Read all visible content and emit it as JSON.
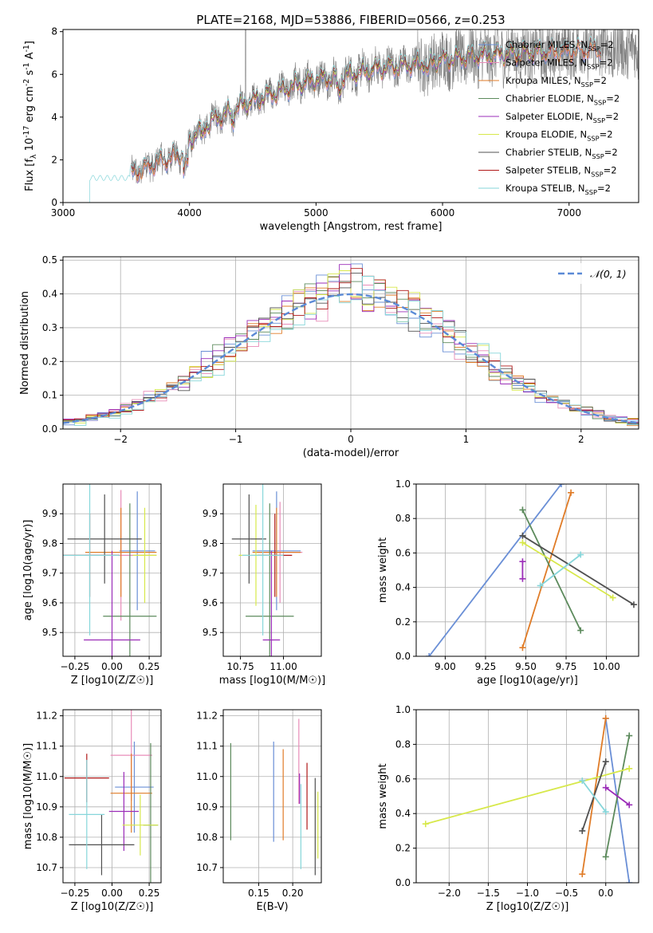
{
  "figure": {
    "title": "PLATE=2168, MJD=53886, FIBERID=0566, z=0.253"
  },
  "colors": {
    "Chabrier MILES": "#6a8fd6",
    "Salpeter MILES": "#e88cb8",
    "Kroupa MILES": "#e07c28",
    "Chabrier ELODIE": "#5c8a5c",
    "Salpeter ELODIE": "#9b2db8",
    "Kroupa ELODIE": "#d7e84a",
    "Chabrier STELIB": "#505050",
    "Salpeter STELIB": "#b01818",
    "Kroupa STELIB": "#86d6da",
    "gaussian": "#5b8ad6",
    "data": "#808080",
    "grid": "#b0b0b0"
  },
  "chart_data": [
    {
      "id": "spectrum",
      "type": "line",
      "title": "PLATE=2168, MJD=53886, FIBERID=0566, z=0.253",
      "xlabel": "wavelength [Angstrom, rest frame]",
      "ylabel": "Flux [f_λ 10^-17 erg cm^-2 s^-1 A^-1]",
      "xlim": [
        3000,
        7550
      ],
      "ylim": [
        0,
        8.1
      ],
      "xticks": [
        3000,
        4000,
        5000,
        6000,
        7000
      ],
      "yticks": [
        0,
        2,
        4,
        6,
        8
      ],
      "grid": false,
      "legend_position": "upper-right",
      "legend": [
        "Chabrier MILES, N_SSP=2",
        "Salpeter MILES, N_SSP=2",
        "Kroupa MILES, N_SSP=2",
        "Chabrier ELODIE, N_SSP=2",
        "Salpeter ELODIE, N_SSP=2",
        "Kroupa ELODIE, N_SSP=2",
        "Chabrier STELIB, N_SSP=2",
        "Salpeter STELIB, N_SSP=2",
        "Kroupa STELIB, N_SSP=2"
      ],
      "continuum": {
        "x": [
          3200,
          3350,
          3500,
          3700,
          3850,
          3950,
          4050,
          4200,
          4400,
          4600,
          4800,
          5000,
          5200,
          5500,
          5800,
          6000,
          6300,
          6600,
          6900,
          7200,
          7550
        ],
        "y": [
          1.1,
          1.3,
          1.2,
          1.8,
          2.1,
          2.3,
          3.3,
          3.9,
          4.5,
          5.0,
          5.4,
          5.8,
          5.9,
          6.3,
          6.5,
          6.7,
          6.9,
          7.0,
          7.1,
          7.2,
          7.1
        ]
      },
      "model_ranges": {
        "Chabrier MILES": [
          3540,
          7250
        ],
        "Salpeter MILES": [
          3540,
          7250
        ],
        "Kroupa MILES": [
          3540,
          7250
        ],
        "Chabrier ELODIE": [
          4000,
          6800
        ],
        "Salpeter ELODIE": [
          4000,
          6800
        ],
        "Kroupa ELODIE": [
          4000,
          6800
        ],
        "Chabrier STELIB": [
          3540,
          7250
        ],
        "Salpeter STELIB": [
          3540,
          7250
        ],
        "Kroupa STELIB": [
          3200,
          7250
        ]
      },
      "data_range": [
        3540,
        7550
      ]
    },
    {
      "id": "residuals",
      "type": "histogram",
      "xlabel": "(data-model)/error",
      "ylabel": "Normed distribution",
      "xlim": [
        -2.5,
        2.5
      ],
      "ylim": [
        0,
        0.51
      ],
      "xticks": [
        -2,
        -1,
        0,
        1,
        2
      ],
      "yticks": [
        0.0,
        0.1,
        0.2,
        0.3,
        0.4,
        0.5
      ],
      "grid": true,
      "legend_position": "upper-right",
      "legend": [
        "𝒩(0, 1)"
      ],
      "bin_width": 0.1
    },
    {
      "id": "age-vs-z",
      "type": "errorbar",
      "xlabel": "Z [log10(Z/Z☉)]",
      "ylabel": "age  [log10(age/yr)]",
      "xlim": [
        -0.33,
        0.33
      ],
      "ylim": [
        9.42,
        10.0
      ],
      "xticks": [
        -0.25,
        0.0,
        0.25
      ],
      "yticks": [
        9.5,
        9.6,
        9.7,
        9.8,
        9.9
      ],
      "grid": true,
      "points": [
        {
          "series": "Chabrier MILES",
          "x": 0.17,
          "xerr": 0.12,
          "y": 9.775,
          "yerr": 0.2
        },
        {
          "series": "Salpeter MILES",
          "x": 0.06,
          "xerr": 0.24,
          "y": 9.76,
          "yerr": 0.22
        },
        {
          "series": "Kroupa MILES",
          "x": 0.06,
          "xerr": 0.24,
          "y": 9.77,
          "yerr": 0.15
        },
        {
          "series": "Chabrier ELODIE",
          "x": 0.12,
          "xerr": 0.18,
          "y": 9.555,
          "yerr": 0.38
        },
        {
          "series": "Salpeter ELODIE",
          "x": 0.0,
          "xerr": 0.19,
          "y": 9.475,
          "yerr": 0.3
        },
        {
          "series": "Kroupa ELODIE",
          "x": 0.22,
          "xerr": 0.08,
          "y": 9.76,
          "yerr": 0.16
        },
        {
          "series": "Chabrier STELIB",
          "x": -0.05,
          "xerr": 0.25,
          "y": 9.815,
          "yerr": 0.15
        },
        {
          "series": "Salpeter STELIB",
          "x": -0.15,
          "xerr": 0.2,
          "y": 9.76,
          "yerr": 0.14
        },
        {
          "series": "Kroupa STELIB",
          "x": -0.15,
          "xerr": 0.2,
          "y": 9.76,
          "yerr": 0.27
        }
      ]
    },
    {
      "id": "age-vs-mass",
      "type": "errorbar",
      "xlabel": "mass [log10(M/M☉)]",
      "ylabel": "",
      "xlim": [
        10.65,
        11.22
      ],
      "ylim": [
        9.42,
        10.0
      ],
      "xticks": [
        10.75,
        11.0
      ],
      "yticks": [
        9.5,
        9.6,
        9.7,
        9.8,
        9.9
      ],
      "grid": true,
      "points": [
        {
          "series": "Chabrier MILES",
          "x": 10.96,
          "xerr": 0.14,
          "y": 9.775,
          "yerr": 0.2
        },
        {
          "series": "Salpeter MILES",
          "x": 10.98,
          "xerr": 0.13,
          "y": 9.77,
          "yerr": 0.17
        },
        {
          "series": "Kroupa MILES",
          "x": 10.96,
          "xerr": 0.14,
          "y": 9.77,
          "yerr": 0.15
        },
        {
          "series": "Chabrier ELODIE",
          "x": 10.92,
          "xerr": 0.14,
          "y": 9.555,
          "yerr": 0.38
        },
        {
          "series": "Salpeter ELODIE",
          "x": 10.93,
          "xerr": 0.05,
          "y": 9.475,
          "yerr": 0.3
        },
        {
          "series": "Kroupa ELODIE",
          "x": 10.84,
          "xerr": 0.1,
          "y": 9.76,
          "yerr": 0.17
        },
        {
          "series": "Chabrier STELIB",
          "x": 10.8,
          "xerr": 0.1,
          "y": 9.815,
          "yerr": 0.15
        },
        {
          "series": "Salpeter STELIB",
          "x": 10.95,
          "xerr": 0.1,
          "y": 9.76,
          "yerr": 0.14
        },
        {
          "series": "Kroupa STELIB",
          "x": 10.88,
          "xerr": 0.12,
          "y": 9.76,
          "yerr": 0.27
        }
      ]
    },
    {
      "id": "weight-vs-age",
      "type": "line",
      "xlabel": "age  [log10(age/yr)]",
      "ylabel": "mass weight",
      "xlim": [
        8.82,
        10.2
      ],
      "ylim": [
        0,
        1.0
      ],
      "xticks": [
        9.0,
        9.25,
        9.5,
        9.75,
        10.0
      ],
      "yticks": [
        0.0,
        0.2,
        0.4,
        0.6,
        0.8,
        1.0
      ],
      "grid": true,
      "series": [
        {
          "series": "Chabrier MILES",
          "x": [
            8.9,
            9.72
          ],
          "y": [
            0.0,
            1.0
          ]
        },
        {
          "series": "Kroupa MILES",
          "x": [
            9.48,
            9.78
          ],
          "y": [
            0.05,
            0.95
          ]
        },
        {
          "series": "Chabrier ELODIE",
          "x": [
            9.48,
            9.84
          ],
          "y": [
            0.85,
            0.15
          ]
        },
        {
          "series": "Salpeter ELODIE",
          "x": [
            9.48,
            9.48
          ],
          "y": [
            0.55,
            0.45
          ]
        },
        {
          "series": "Kroupa ELODIE",
          "x": [
            9.48,
            10.04
          ],
          "y": [
            0.66,
            0.34
          ]
        },
        {
          "series": "Chabrier STELIB",
          "x": [
            9.48,
            10.17
          ],
          "y": [
            0.7,
            0.3
          ]
        },
        {
          "series": "Kroupa STELIB",
          "x": [
            9.59,
            9.84
          ],
          "y": [
            0.41,
            0.59
          ]
        }
      ]
    },
    {
      "id": "mass-vs-z",
      "type": "errorbar",
      "xlabel": "Z [log10(Z/Z☉)]",
      "ylabel": "mass [log10(M/M☉)]",
      "xlim": [
        -0.33,
        0.33
      ],
      "ylim": [
        10.65,
        11.22
      ],
      "xticks": [
        -0.25,
        0.0,
        0.25
      ],
      "yticks": [
        10.7,
        10.8,
        10.9,
        11.0,
        11.1,
        11.2
      ],
      "grid": true,
      "points": [
        {
          "series": "Chabrier MILES",
          "x": 0.15,
          "xerr": 0.13,
          "y": 10.965,
          "yerr": 0.15
        },
        {
          "series": "Salpeter MILES",
          "x": 0.13,
          "xerr": 0.14,
          "y": 11.07,
          "yerr": 0.15
        },
        {
          "series": "Kroupa MILES",
          "x": 0.13,
          "xerr": 0.14,
          "y": 10.945,
          "yerr": 0.13
        },
        {
          "series": "Chabrier ELODIE",
          "x": 0.26,
          "xerr": 0.05,
          "y": 10.84,
          "yerr": 0.27
        },
        {
          "series": "Salpeter ELODIE",
          "x": 0.08,
          "xerr": 0.1,
          "y": 10.885,
          "yerr": 0.13
        },
        {
          "series": "Kroupa ELODIE",
          "x": 0.19,
          "xerr": 0.12,
          "y": 10.84,
          "yerr": 0.1
        },
        {
          "series": "Chabrier STELIB",
          "x": -0.07,
          "xerr": 0.22,
          "y": 10.775,
          "yerr": 0.1
        },
        {
          "series": "Salpeter STELIB",
          "x": -0.17,
          "xerr": 0.15,
          "y": 10.995,
          "yerr": 0.08
        },
        {
          "series": "Kroupa STELIB",
          "x": -0.17,
          "xerr": 0.12,
          "y": 10.875,
          "yerr": 0.18
        }
      ]
    },
    {
      "id": "mass-vs-ebv",
      "type": "errorbar",
      "xlabel": "E(B-V)",
      "ylabel": "",
      "xlim": [
        0.098,
        0.242
      ],
      "ylim": [
        10.65,
        11.22
      ],
      "xticks": [
        0.15,
        0.2
      ],
      "yticks": [
        10.7,
        10.8,
        10.9,
        11.0,
        11.1,
        11.2
      ],
      "grid": true,
      "points": [
        {
          "series": "Chabrier MILES",
          "x": 0.172,
          "xerr": 0.0,
          "y": 10.95,
          "yerr": 0.165
        },
        {
          "series": "Salpeter MILES",
          "x": 0.209,
          "xerr": 0.0,
          "y": 11.05,
          "yerr": 0.14
        },
        {
          "series": "Kroupa MILES",
          "x": 0.186,
          "xerr": 0.0,
          "y": 10.94,
          "yerr": 0.15
        },
        {
          "series": "Chabrier ELODIE",
          "x": 0.109,
          "xerr": 0.0,
          "y": 10.95,
          "yerr": 0.16
        },
        {
          "series": "Salpeter ELODIE",
          "x": 0.21,
          "xerr": 0.0,
          "y": 10.96,
          "yerr": 0.05
        },
        {
          "series": "Kroupa ELODIE",
          "x": 0.237,
          "xerr": 0.0,
          "y": 10.84,
          "yerr": 0.11
        },
        {
          "series": "Chabrier STELIB",
          "x": 0.233,
          "xerr": 0.0,
          "y": 10.835,
          "yerr": 0.16
        },
        {
          "series": "Salpeter STELIB",
          "x": 0.221,
          "xerr": 0.0,
          "y": 10.935,
          "yerr": 0.11
        },
        {
          "series": "Kroupa STELIB",
          "x": 0.212,
          "xerr": 0.0,
          "y": 10.835,
          "yerr": 0.14
        }
      ]
    },
    {
      "id": "weight-vs-z",
      "type": "line",
      "xlabel": "Z [log10(Z/Z☉)]",
      "ylabel": "mass weight",
      "xlim": [
        -2.42,
        0.42
      ],
      "ylim": [
        0,
        1.0
      ],
      "xticks": [
        -2.0,
        -1.5,
        -1.0,
        -0.5,
        0.0
      ],
      "yticks": [
        0.0,
        0.2,
        0.4,
        0.6,
        0.8,
        1.0
      ],
      "grid": true,
      "series": [
        {
          "series": "Chabrier MILES",
          "x": [
            0.0,
            0.3
          ],
          "y": [
            0.95,
            0.0
          ]
        },
        {
          "series": "Kroupa MILES",
          "x": [
            -0.3,
            0.0
          ],
          "y": [
            0.05,
            0.95
          ]
        },
        {
          "series": "Chabrier ELODIE",
          "x": [
            0.0,
            0.3
          ],
          "y": [
            0.15,
            0.85
          ]
        },
        {
          "series": "Salpeter ELODIE",
          "x": [
            0.0,
            0.3
          ],
          "y": [
            0.55,
            0.45
          ]
        },
        {
          "series": "Kroupa ELODIE",
          "x": [
            -2.3,
            0.3
          ],
          "y": [
            0.34,
            0.66
          ]
        },
        {
          "series": "Chabrier STELIB",
          "x": [
            -0.3,
            0.0
          ],
          "y": [
            0.3,
            0.7
          ]
        },
        {
          "series": "Kroupa STELIB",
          "x": [
            -0.3,
            0.0
          ],
          "y": [
            0.59,
            0.41
          ]
        }
      ]
    }
  ]
}
